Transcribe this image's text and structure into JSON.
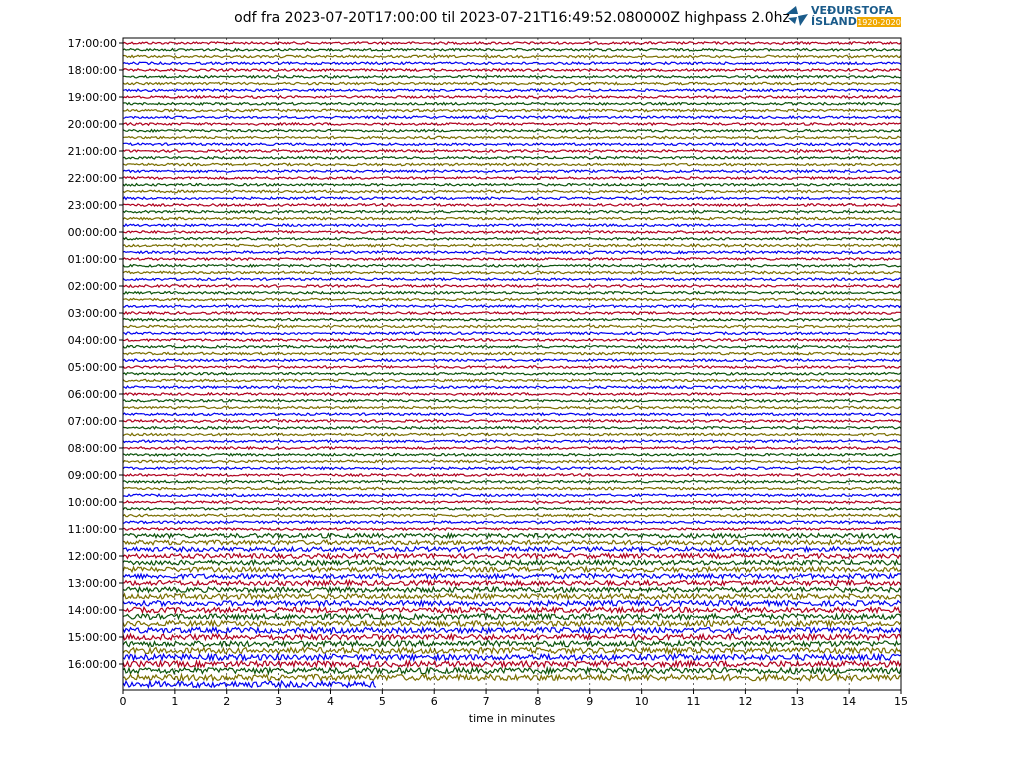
{
  "chart_data": {
    "type": "helicorder",
    "title": "odf fra 2023-07-20T17:00:00 til 2023-07-21T16:49:52.080000Z highpass 2.0hz",
    "xlabel": "time in minutes",
    "xlim": [
      0,
      15
    ],
    "xticks": [
      0,
      1,
      2,
      3,
      4,
      5,
      6,
      7,
      8,
      9,
      10,
      11,
      12,
      13,
      14,
      15
    ],
    "grid": true,
    "hour_labels": [
      "17:00:00",
      "18:00:00",
      "19:00:00",
      "20:00:00",
      "21:00:00",
      "22:00:00",
      "23:00:00",
      "00:00:00",
      "01:00:00",
      "02:00:00",
      "03:00:00",
      "04:00:00",
      "05:00:00",
      "06:00:00",
      "07:00:00",
      "08:00:00",
      "09:00:00",
      "10:00:00",
      "11:00:00",
      "12:00:00",
      "13:00:00",
      "14:00:00",
      "15:00:00",
      "16:00:00"
    ],
    "trace_colors": [
      "#b0001e",
      "#0a520a",
      "#7a6e00",
      "#0000f0"
    ],
    "logo": {
      "line1": "VEÐURSTOFA",
      "line2": "ÍSLANDS",
      "badge": "1920-2020"
    }
  }
}
